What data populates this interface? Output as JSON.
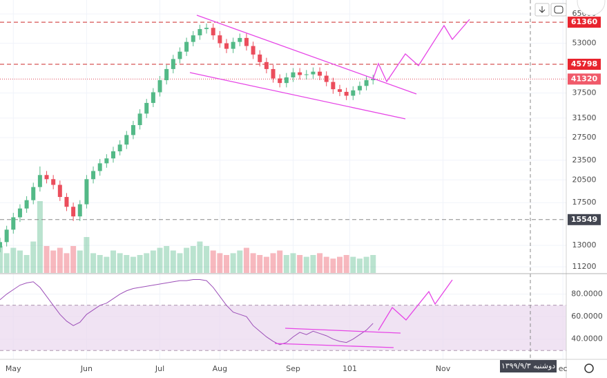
{
  "chart_data": {
    "type": "candlestick",
    "x": [
      -4,
      -2,
      0,
      2,
      4,
      6,
      8,
      10,
      12,
      14,
      16,
      18,
      20,
      22,
      24,
      26,
      28,
      30,
      32,
      34,
      36,
      38,
      40,
      42,
      44,
      46,
      48,
      50,
      52,
      54,
      56,
      58,
      60,
      62,
      64,
      66,
      68,
      70,
      72,
      74,
      76,
      78,
      80,
      82,
      84,
      86,
      88,
      90,
      92,
      94,
      96,
      98,
      100,
      102,
      104,
      106,
      108
    ],
    "open": [
      12800,
      13300,
      14500,
      15800,
      16800,
      17800,
      19500,
      21200,
      20600,
      19800,
      18200,
      17000,
      15900,
      17300,
      20600,
      21800,
      23000,
      23800,
      25000,
      26200,
      28000,
      30000,
      32500,
      35000,
      37700,
      41000,
      44300,
      47500,
      50000,
      53500,
      56000,
      58500,
      59000,
      56000,
      53000,
      51000,
      53500,
      55000,
      52000,
      49000,
      46500,
      44300,
      41500,
      40200,
      41800,
      43300,
      42500,
      42700,
      43500,
      42300,
      40500,
      38500,
      37800,
      36800,
      38200,
      39400,
      41000
    ],
    "high": [
      13700,
      14900,
      16300,
      17300,
      18300,
      20100,
      22500,
      21800,
      21200,
      20400,
      18700,
      17500,
      17800,
      21200,
      22500,
      23700,
      24500,
      25800,
      27000,
      28800,
      30900,
      33500,
      36000,
      38800,
      42200,
      45600,
      48900,
      51500,
      55100,
      57700,
      60300,
      60800,
      60800,
      57700,
      54600,
      55100,
      56700,
      56700,
      53600,
      50500,
      47900,
      45600,
      42700,
      43100,
      44600,
      44600,
      44000,
      44800,
      44800,
      43600,
      41700,
      39700,
      38900,
      39300,
      40600,
      42200,
      42600
    ],
    "low": [
      12400,
      12900,
      14100,
      15300,
      16300,
      17300,
      18900,
      20000,
      19200,
      17700,
      16500,
      15400,
      15400,
      16800,
      20000,
      21100,
      22300,
      23100,
      24300,
      25400,
      27200,
      29100,
      31500,
      34000,
      36600,
      39800,
      43000,
      46100,
      48500,
      51900,
      54300,
      56700,
      54300,
      51400,
      49500,
      49500,
      51900,
      50400,
      47500,
      45100,
      43000,
      40300,
      39000,
      39000,
      40500,
      41200,
      41200,
      41400,
      41000,
      39300,
      37300,
      36700,
      35700,
      35700,
      37100,
      38200,
      39800
    ],
    "close": [
      13300,
      14500,
      15800,
      16800,
      17800,
      19500,
      21200,
      20600,
      19800,
      18200,
      17000,
      15900,
      17300,
      20600,
      21800,
      23000,
      23800,
      25000,
      26200,
      28000,
      30000,
      32500,
      35000,
      37700,
      41000,
      44300,
      47500,
      50000,
      53500,
      56000,
      58500,
      59000,
      56000,
      53000,
      51000,
      53500,
      55000,
      52000,
      49000,
      46500,
      44300,
      41500,
      40200,
      41800,
      43300,
      42500,
      42700,
      43500,
      42300,
      40500,
      38500,
      37800,
      36800,
      38200,
      39400,
      41000,
      41320
    ],
    "volume": [
      30,
      22,
      28,
      25,
      20,
      35,
      80,
      30,
      25,
      28,
      22,
      30,
      25,
      40,
      22,
      20,
      18,
      25,
      22,
      20,
      18,
      20,
      22,
      25,
      28,
      30,
      25,
      22,
      28,
      30,
      35,
      30,
      25,
      22,
      20,
      22,
      25,
      28,
      22,
      20,
      18,
      22,
      25,
      20,
      22,
      20,
      18,
      20,
      22,
      18,
      16,
      18,
      20,
      18,
      16,
      18,
      20
    ],
    "rsi": [
      75,
      80,
      84,
      88,
      90,
      91,
      86,
      78,
      70,
      62,
      56,
      52,
      55,
      62,
      66,
      70,
      72,
      76,
      80,
      83,
      85,
      86,
      87,
      88,
      89,
      90,
      91,
      92,
      92,
      93,
      93,
      92,
      86,
      78,
      70,
      64,
      62,
      60,
      52,
      47,
      42,
      38,
      35,
      37,
      42,
      46,
      44,
      47,
      45,
      43,
      40,
      38,
      37,
      40,
      44,
      48,
      54
    ],
    "up_color": "#53b987",
    "down_color": "#eb4d5c",
    "rsi_color": "#9c4fb8",
    "xlim": [
      -4,
      166
    ],
    "xticks": [
      {
        "value": 0,
        "label": "May"
      },
      {
        "value": 22,
        "label": "Jun"
      },
      {
        "value": 44,
        "label": "Jul"
      },
      {
        "value": 62,
        "label": "Aug"
      },
      {
        "value": 84,
        "label": "Sep"
      },
      101,
      {
        "value": 129,
        "label": "Nov"
      },
      {
        "value": 165,
        "label": "ec"
      }
    ],
    "ylim": [
      10730,
      71600
    ],
    "log_scale": true,
    "yticks": [
      65000,
      53000,
      37500,
      31500,
      27500,
      23500,
      20500,
      17500,
      13000,
      11200
    ],
    "volume_lim": [
      0,
      100
    ],
    "levels": [
      {
        "value": 61360,
        "color": "#cc2828",
        "box": "#e8242e",
        "dash": "6,4"
      },
      {
        "value": 45798,
        "color": "#cc2828",
        "box": "#e8242e",
        "dash": "6,4"
      },
      {
        "value": 41320,
        "color": "#e04858",
        "box": "#f05a6a",
        "dash": "1,2"
      },
      {
        "value": 15549,
        "color": "#888888",
        "box": "#434651",
        "dash": "6,4"
      }
    ],
    "rsi_lim": [
      22,
      97
    ],
    "rsi_band": [
      30,
      70
    ],
    "rsi_ticks": [
      {
        "value": 80,
        "label": "80.0000"
      },
      {
        "value": 60,
        "label": "60.0000"
      },
      {
        "value": 40,
        "label": "40.0000"
      }
    ]
  },
  "crosshair_label": "دوشنبه ۱۳۹۹/۹/۳"
}
